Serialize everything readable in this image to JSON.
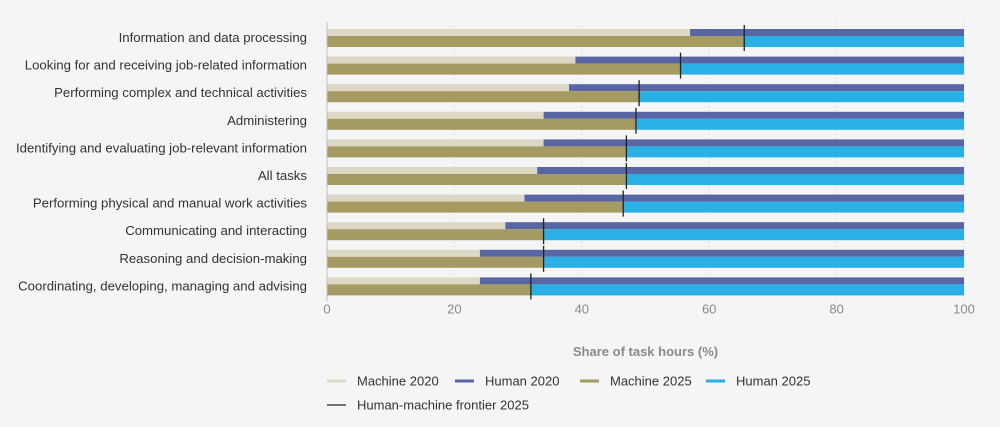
{
  "chart_data": {
    "type": "bar",
    "orientation": "horizontal",
    "xlabel": "Share of task hours (%)",
    "xlim": [
      0,
      100
    ],
    "xticks": [
      0,
      20,
      40,
      60,
      80,
      100
    ],
    "grid": "vertical dotted",
    "legend_position": "bottom",
    "categories": [
      "Information and data processing",
      "Looking for and receiving job-related information",
      "Performing complex and technical activities",
      "Administering",
      "Identifying and evaluating job-relevant information",
      "All tasks",
      "Performing physical and manual work activities",
      "Communicating and interacting",
      "Reasoning and decision-making",
      "Coordinating, developing, managing and advising"
    ],
    "series": [
      {
        "name": "Machine 2020",
        "color": "#dcd8c5",
        "values": [
          57,
          39,
          38,
          34,
          34,
          33,
          31,
          28,
          24,
          24
        ]
      },
      {
        "name": "Human 2020",
        "color": "#5866a4",
        "values": [
          43,
          61,
          62,
          66,
          66,
          67,
          69,
          72,
          76,
          76
        ]
      },
      {
        "name": "Machine 2025",
        "color": "#a59a62",
        "values": [
          65.5,
          55.5,
          49,
          48.5,
          47,
          47,
          46.5,
          34,
          34,
          32
        ]
      },
      {
        "name": "Human 2025",
        "color": "#2bb0e6",
        "values": [
          34.5,
          44.5,
          51,
          51.5,
          53,
          53,
          53.5,
          66,
          66,
          68
        ]
      }
    ],
    "frontier": {
      "name": "Human-machine frontier 2025",
      "color": "#222222",
      "values": [
        65.5,
        55.5,
        49,
        48.5,
        47,
        47,
        46.5,
        34,
        34,
        32
      ]
    }
  }
}
